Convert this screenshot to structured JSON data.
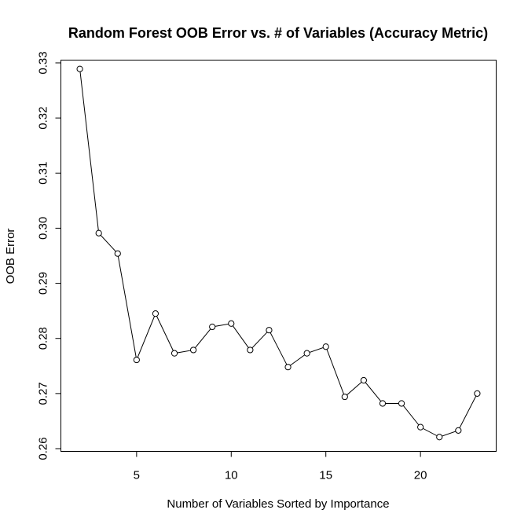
{
  "chart_data": {
    "type": "line",
    "title": "Random Forest OOB Error vs. # of Variables (Accuracy Metric)",
    "xlabel": "Number of Variables Sorted by Importance",
    "ylabel": "OOB Error",
    "xlim": [
      1,
      24
    ],
    "ylim": [
      0.2595,
      0.3305
    ],
    "xticks": [
      5,
      10,
      15,
      20
    ],
    "xtick_labels": [
      "5",
      "10",
      "15",
      "20"
    ],
    "yticks": [
      0.26,
      0.27,
      0.28,
      0.29,
      0.3,
      0.31,
      0.32,
      0.33
    ],
    "ytick_labels": [
      "0.26",
      "0.27",
      "0.28",
      "0.29",
      "0.30",
      "0.31",
      "0.32",
      "0.33"
    ],
    "grid": false,
    "marker": "open-circle",
    "line_color": "#000000",
    "x": [
      2,
      3,
      4,
      5,
      6,
      7,
      8,
      9,
      10,
      11,
      12,
      13,
      14,
      15,
      16,
      17,
      18,
      19,
      20,
      21,
      22,
      23
    ],
    "values": [
      0.3289,
      0.2991,
      0.2954,
      0.2761,
      0.2845,
      0.2773,
      0.2779,
      0.2821,
      0.2827,
      0.2779,
      0.2815,
      0.2748,
      0.2773,
      0.2785,
      0.2694,
      0.2724,
      0.2682,
      0.2682,
      0.2639,
      0.2621,
      0.2633,
      0.27
    ]
  }
}
